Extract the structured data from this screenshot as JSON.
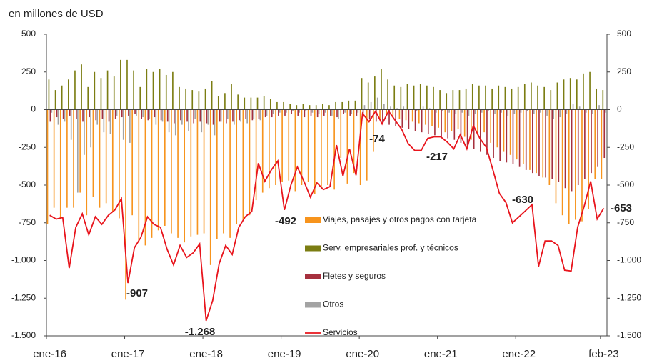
{
  "chart_data": {
    "type": "bar",
    "y_axis_label": "en millones de USD",
    "categories": [
      "ene-16",
      null,
      null,
      null,
      null,
      null,
      null,
      null,
      null,
      null,
      null,
      null,
      "ene-17",
      null,
      null,
      null,
      null,
      null,
      null,
      null,
      null,
      null,
      null,
      null,
      "ene-18",
      null,
      null,
      null,
      null,
      null,
      null,
      null,
      null,
      null,
      null,
      null,
      "ene-19",
      null,
      null,
      null,
      null,
      null,
      null,
      null,
      null,
      null,
      null,
      null,
      "ene-20",
      null,
      null,
      null,
      null,
      null,
      null,
      null,
      null,
      null,
      null,
      null,
      "ene-21",
      null,
      null,
      null,
      null,
      null,
      null,
      null,
      null,
      null,
      null,
      null,
      "ene-22",
      null,
      null,
      null,
      null,
      null,
      null,
      null,
      null,
      null,
      null,
      null,
      null,
      "feb-23"
    ],
    "series": [
      {
        "name": "Viajes, pasajes y otros pagos con tarjeta",
        "color": "#f7941d",
        "values": [
          -760,
          -650,
          -720,
          -650,
          -650,
          -550,
          -700,
          -580,
          -650,
          -620,
          -680,
          -720,
          -1260,
          -700,
          -880,
          -900,
          -850,
          -800,
          -770,
          -820,
          -850,
          -880,
          -840,
          -830,
          -820,
          -1030,
          -860,
          -820,
          -850,
          -760,
          -730,
          -700,
          -600,
          -550,
          -520,
          -500,
          -480,
          -470,
          -540,
          -500,
          -480,
          -560,
          -520,
          -500,
          -530,
          -320,
          -490,
          -420,
          -500,
          -470,
          -280,
          -60,
          -40,
          -50,
          -60,
          -70,
          -80,
          -90,
          -100,
          -110,
          -120,
          -150,
          -140,
          -130,
          -180,
          -200,
          -170,
          -150,
          -220,
          -250,
          -280,
          -300,
          -330,
          -360,
          -400,
          -420,
          -450,
          -500,
          -620,
          -700,
          -760,
          -730,
          -740,
          -660,
          -460,
          -460
        ]
      },
      {
        "name": "Serv. empresariales prof. y técnicos",
        "color": "#7b7d12",
        "values": [
          200,
          130,
          160,
          200,
          260,
          300,
          150,
          250,
          210,
          260,
          220,
          330,
          330,
          260,
          150,
          270,
          250,
          270,
          230,
          250,
          150,
          140,
          130,
          120,
          140,
          190,
          90,
          110,
          170,
          100,
          80,
          80,
          80,
          90,
          70,
          50,
          50,
          40,
          30,
          40,
          30,
          30,
          40,
          30,
          50,
          50,
          60,
          60,
          210,
          180,
          220,
          270,
          200,
          160,
          150,
          170,
          160,
          170,
          160,
          150,
          130,
          110,
          130,
          130,
          140,
          170,
          160,
          160,
          140,
          160,
          150,
          140,
          150,
          170,
          180,
          160,
          150,
          130,
          180,
          200,
          210,
          200,
          240,
          250,
          140,
          130
        ]
      },
      {
        "name": "Fletes y seguros",
        "color": "#a6303e",
        "values": [
          -80,
          -50,
          -60,
          -40,
          -60,
          -80,
          -50,
          -70,
          -60,
          -80,
          -60,
          -50,
          -40,
          -30,
          -60,
          -70,
          -50,
          -70,
          -80,
          -90,
          -70,
          -80,
          -90,
          -80,
          -90,
          -100,
          -80,
          -90,
          -80,
          -70,
          -60,
          -70,
          -60,
          -50,
          -50,
          -40,
          -40,
          -30,
          -40,
          -50,
          -40,
          -50,
          -40,
          -40,
          -50,
          -30,
          -40,
          -40,
          -50,
          -60,
          -80,
          -90,
          -100,
          -110,
          -120,
          -130,
          -140,
          -150,
          -160,
          -170,
          -180,
          -190,
          -200,
          -220,
          -240,
          -260,
          -280,
          -300,
          -320,
          -340,
          -350,
          -360,
          -380,
          -400,
          -420,
          -440,
          -450,
          -460,
          -480,
          -520,
          -540,
          -500,
          -460,
          -420,
          -380,
          -320
        ]
      },
      {
        "name": "Otros",
        "color": "#a3a3a3",
        "values": [
          -20,
          -100,
          -80,
          -200,
          -550,
          -300,
          -250,
          -100,
          -150,
          -160,
          -40,
          -200,
          -220,
          -40,
          -50,
          -60,
          -100,
          -80,
          -150,
          -170,
          -100,
          -140,
          -60,
          -150,
          -100,
          -170,
          -80,
          -60,
          -100,
          -80,
          -90,
          -60,
          -70,
          -40,
          -30,
          -20,
          -20,
          -10,
          -20,
          -10,
          -20,
          -30,
          -20,
          -40,
          -60,
          -20,
          -30,
          -20,
          30,
          50,
          80,
          40,
          20,
          10,
          20,
          0,
          -10,
          20,
          10,
          -20,
          -10,
          -20,
          -30,
          -20,
          -40,
          -30,
          -20,
          -10,
          -30,
          -20,
          -40,
          -30,
          -20,
          -10,
          -30,
          -20,
          -40,
          -60,
          -50,
          -30,
          40,
          20,
          -20,
          -30,
          30,
          -20
        ]
      },
      {
        "name": "Servicios",
        "type": "line",
        "color": "#e8141c",
        "values": [
          -700,
          -725,
          -715,
          -1050,
          -780,
          -690,
          -830,
          -710,
          -760,
          -700,
          -665,
          -590,
          -1150,
          -915,
          -845,
          -710,
          -760,
          -780,
          -925,
          -1030,
          -900,
          -980,
          -950,
          -890,
          -1400,
          -1265,
          -1020,
          -900,
          -960,
          -780,
          -710,
          -675,
          -355,
          -475,
          -400,
          -340,
          -665,
          -500,
          -380,
          -475,
          -580,
          -485,
          -530,
          -510,
          -235,
          -440,
          -260,
          -435,
          -25,
          -80,
          -10,
          -95,
          -10,
          -70,
          -130,
          -225,
          -270,
          -270,
          -190,
          -180,
          -180,
          -215,
          -260,
          -165,
          -260,
          -105,
          -190,
          -250,
          -400,
          -555,
          -615,
          -750,
          -710,
          -670,
          -630,
          -1040,
          -870,
          -870,
          -900,
          -1065,
          -1070,
          -780,
          -640,
          -475,
          -725,
          -653
        ]
      }
    ],
    "annotations": [
      "-907",
      "-1.268",
      "-492",
      "-74",
      "-217",
      "-630",
      "-653"
    ],
    "ylim": [
      -1500,
      500
    ],
    "yticks": [
      {
        "value": -1500,
        "label": "-1.500"
      },
      {
        "value": -1250,
        "label": "-1.250"
      },
      {
        "value": -1000,
        "label": "-1.000"
      },
      -750,
      -500,
      -250,
      0,
      250,
      500
    ],
    "y2lim": [
      -1500,
      500
    ],
    "y2ticks": [
      {
        "value": -1500,
        "label": "-1.500"
      },
      {
        "value": -1250,
        "label": "-1.250"
      },
      {
        "value": -1000,
        "label": "-1.000"
      },
      -750,
      -500,
      -250,
      0,
      250,
      500
    ]
  }
}
